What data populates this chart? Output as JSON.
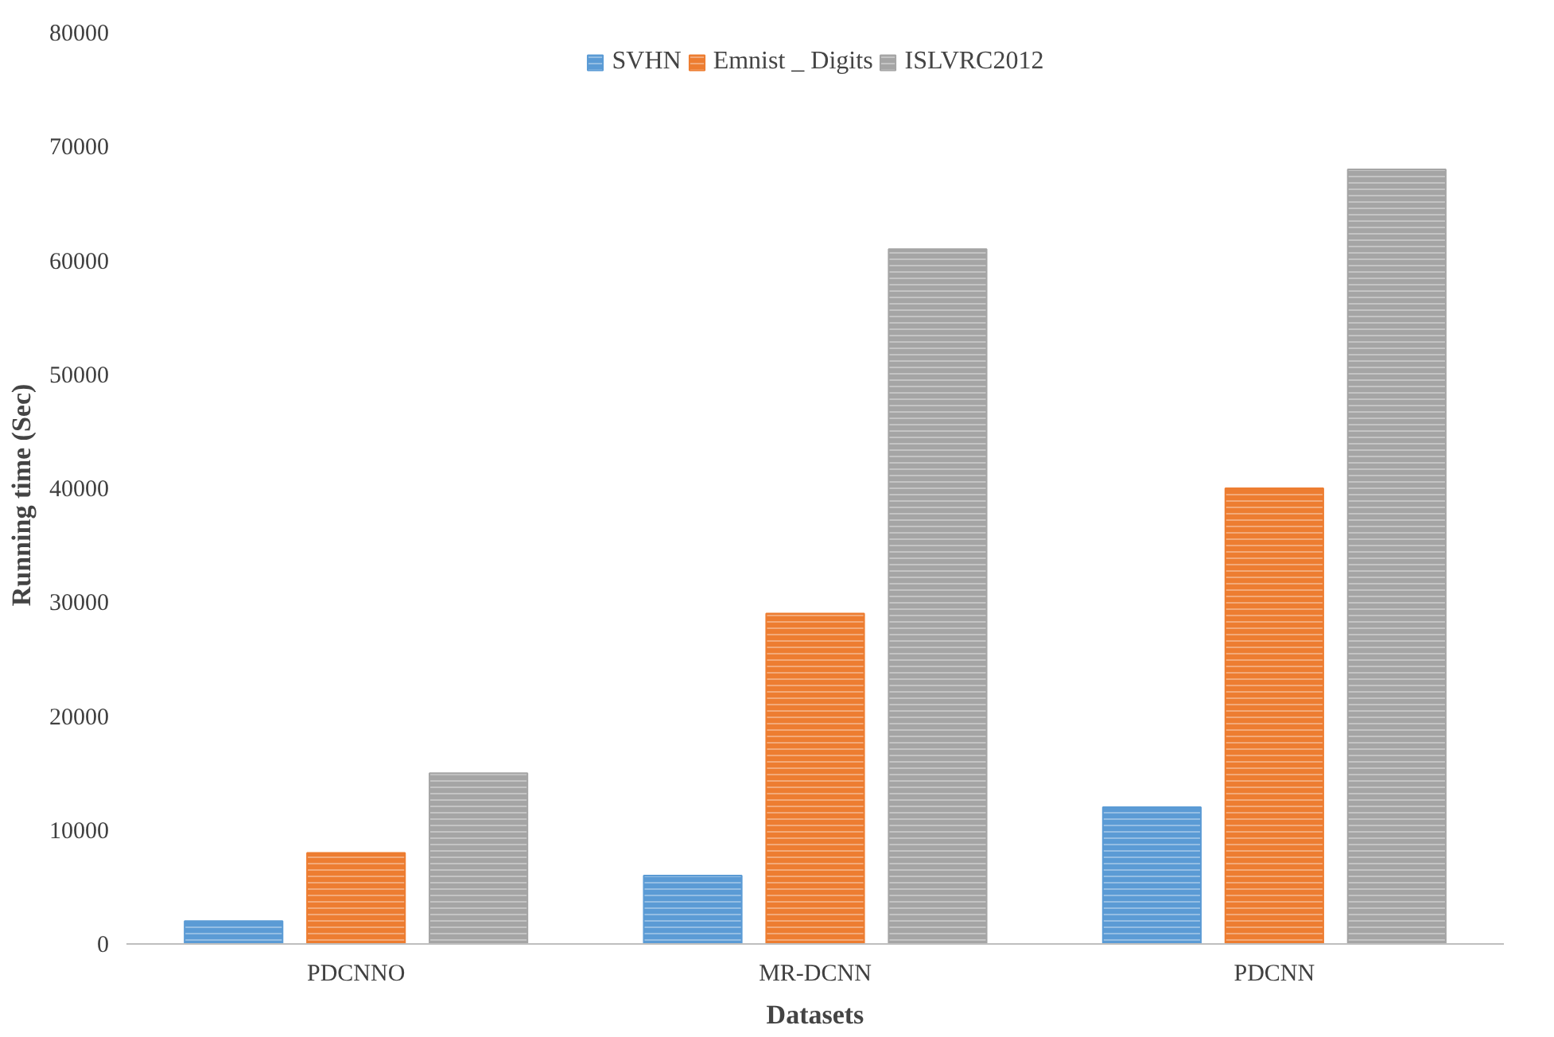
{
  "chart_data": {
    "type": "bar",
    "xlabel": "Datasets",
    "ylabel": "Running time   (Sec)",
    "categories": [
      "PDCNNO",
      "MR-DCNN",
      "PDCNN"
    ],
    "series": [
      {
        "name": "SVHN",
        "color": "#5b9bd5",
        "values": [
          2000,
          6000,
          12000
        ]
      },
      {
        "name": "Emnist _ Digits",
        "color": "#ed7d31",
        "values": [
          8000,
          29000,
          40000
        ]
      },
      {
        "name": "ISLVRC2012",
        "color": "#a5a5a5",
        "values": [
          15000,
          61000,
          68000
        ]
      }
    ],
    "ylim": [
      0,
      80000
    ],
    "yticks": [
      0,
      10000,
      20000,
      30000,
      40000,
      50000,
      60000,
      70000,
      80000
    ],
    "grid": false,
    "legend": "top"
  }
}
